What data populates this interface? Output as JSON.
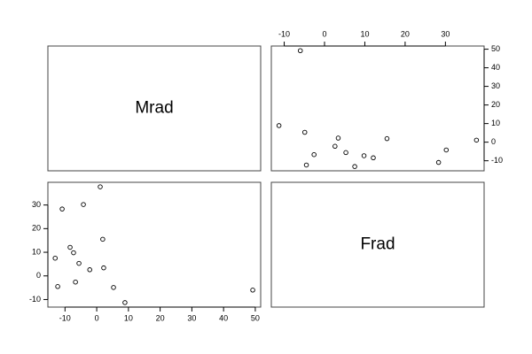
{
  "chart_data": {
    "type": "pairs",
    "variables": [
      {
        "name": "Mrad",
        "lim": [
          -15.4,
          51.7
        ],
        "ticks": [
          -10,
          0,
          10,
          20,
          30,
          40,
          50
        ],
        "values": [
          -13.1,
          -12.3,
          -10.9,
          -8.4,
          -7.3,
          -6.7,
          -5.6,
          -4.2,
          -2.2,
          1.1,
          1.9,
          2.2,
          5.3,
          8.9,
          49.2
        ]
      },
      {
        "name": "Frad",
        "lim": [
          -13.2,
          39.6
        ],
        "ticks": [
          -10,
          0,
          10,
          20,
          30
        ],
        "values": [
          7.5,
          -4.5,
          28.3,
          12.1,
          9.8,
          -2.6,
          5.3,
          30.2,
          2.6,
          37.7,
          15.5,
          3.4,
          -4.9,
          -11.3,
          -6.0
        ]
      }
    ]
  }
}
